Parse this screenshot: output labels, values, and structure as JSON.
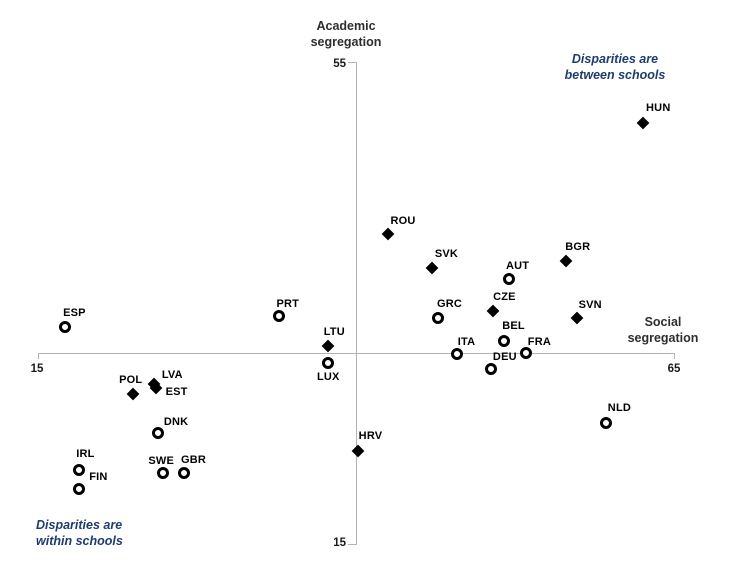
{
  "chart_data": {
    "type": "scatter",
    "title": "",
    "xlabel": "Social segregation",
    "ylabel": "Academic segregation",
    "xlim": [
      15,
      65
    ],
    "ylim": [
      15,
      55
    ],
    "x_tick_labels": [
      "15",
      "65"
    ],
    "y_tick_labels": [
      "55",
      "15"
    ],
    "grid": false,
    "legend_position": "none",
    "quadrant_annotations": [
      {
        "text": "Disparities are between schools",
        "position": "top-right"
      },
      {
        "text": "Disparities are within schools",
        "position": "bottom-left"
      }
    ],
    "series": [
      {
        "name": "filled-diamond-countries",
        "marker": "diamond",
        "points": [
          {
            "label": "HUN",
            "x": 62.5,
            "y": 50.4,
            "dx": 15,
            "dy": -15
          },
          {
            "label": "ROU",
            "x": 42.4,
            "y": 41.1,
            "dx": 15,
            "dy": -13
          },
          {
            "label": "SVK",
            "x": 45.9,
            "y": 38.2,
            "dx": 14,
            "dy": -14
          },
          {
            "label": "BGR",
            "x": 56.4,
            "y": 38.8,
            "dx": 12,
            "dy": -14
          },
          {
            "label": "CZE",
            "x": 50.7,
            "y": 34.6,
            "dx": 11,
            "dy": -14
          },
          {
            "label": "SVN",
            "x": 57.3,
            "y": 34.0,
            "dx": 13,
            "dy": -13
          },
          {
            "label": "LTU",
            "x": 37.7,
            "y": 31.7,
            "dx": 6,
            "dy": -14
          },
          {
            "label": "POL",
            "x": 22.3,
            "y": 27.7,
            "dx": -2,
            "dy": -14
          },
          {
            "label": "LVA",
            "x": 24.0,
            "y": 28.5,
            "dx": 18,
            "dy": -9
          },
          {
            "label": "EST",
            "x": 24.1,
            "y": 28.2,
            "dx": 21,
            "dy": 4
          },
          {
            "label": "HRV",
            "x": 40.0,
            "y": 22.9,
            "dx": 13,
            "dy": -15
          }
        ]
      },
      {
        "name": "open-circle-countries",
        "marker": "circle",
        "points": [
          {
            "label": "AUT",
            "x": 51.9,
            "y": 37.3,
            "dx": 9,
            "dy": -13
          },
          {
            "label": "GRC",
            "x": 46.3,
            "y": 34.0,
            "dx": 12,
            "dy": -14
          },
          {
            "label": "BEL",
            "x": 51.5,
            "y": 32.1,
            "dx": 10,
            "dy": -15
          },
          {
            "label": "FRA",
            "x": 53.3,
            "y": 31.1,
            "dx": 13,
            "dy": -11
          },
          {
            "label": "ITA",
            "x": 47.8,
            "y": 31.0,
            "dx": 10,
            "dy": -12
          },
          {
            "label": "DEU",
            "x": 50.5,
            "y": 29.8,
            "dx": 14,
            "dy": -12
          },
          {
            "label": "PRT",
            "x": 33.8,
            "y": 34.2,
            "dx": 9,
            "dy": -12
          },
          {
            "label": "LUX",
            "x": 37.7,
            "y": 30.3,
            "dx": 0,
            "dy": 14
          },
          {
            "label": "ESP",
            "x": 17.0,
            "y": 33.3,
            "dx": 9,
            "dy": -14
          },
          {
            "label": "DNK",
            "x": 24.3,
            "y": 24.4,
            "dx": 18,
            "dy": -11
          },
          {
            "label": "IRL",
            "x": 18.1,
            "y": 21.3,
            "dx": 6,
            "dy": -16
          },
          {
            "label": "FIN",
            "x": 18.1,
            "y": 19.7,
            "dx": 19,
            "dy": -12
          },
          {
            "label": "SWE",
            "x": 24.7,
            "y": 21.0,
            "dx": -2,
            "dy": -12
          },
          {
            "label": "GBR",
            "x": 26.3,
            "y": 21.0,
            "dx": 10,
            "dy": -13
          },
          {
            "label": "NLD",
            "x": 59.6,
            "y": 25.2,
            "dx": 13,
            "dy": -15
          }
        ]
      }
    ]
  },
  "axes": {
    "y_title_line1": "Academic",
    "y_title_line2": "segregation",
    "y_max": "55",
    "y_min": "15",
    "x_title_line1": "Social",
    "x_title_line2": "segregation",
    "x_min": "15",
    "x_max": "65"
  },
  "annotations": {
    "top_right_line1": "Disparities are",
    "top_right_line2": "between schools",
    "bottom_left_line1": "Disparities are",
    "bottom_left_line2": "within schools"
  },
  "colors": {
    "annotation_blue": "#1e3c6e",
    "axis_gray": "#b3b3b3",
    "marker_black": "#000000"
  }
}
